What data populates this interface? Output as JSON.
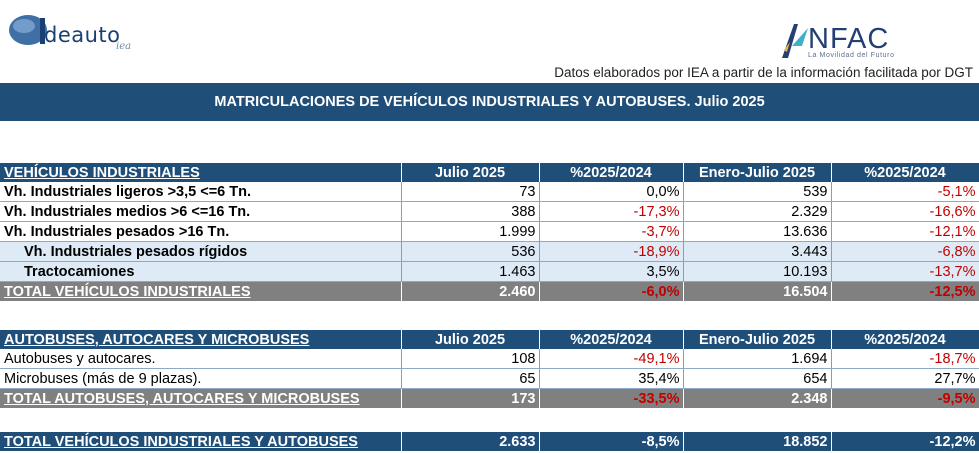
{
  "header": {
    "logo_left_text": "deauto",
    "logo_left_sub": "iea",
    "logo_right_text": "NFAC",
    "logo_right_tag": "La Movilidad del Futuro",
    "source": "Datos elaborados por IEA a partir de la información facilitada por DGT",
    "title": "MATRICULACIONES DE VEHÍCULOS INDUSTRIALES Y AUTOBUSES.  Julio 2025"
  },
  "colors": {
    "banner": "#1f4e79",
    "total_row": "#808080",
    "negative": "#c00000",
    "sub_row": "#deeaf6"
  },
  "industriales": {
    "header": [
      "VEHÍCULOS INDUSTRIALES",
      "Julio 2025",
      "%2025/2024",
      "Enero-Julio 2025",
      "%2025/2024"
    ],
    "rows": [
      [
        "Vh. Industriales ligeros >3,5 <=6 Tn.",
        "73",
        "0,0%",
        "539",
        "-5,1%"
      ],
      [
        "Vh. Industriales medios >6  <=16 Tn.",
        "388",
        "-17,3%",
        "2.329",
        "-16,6%"
      ],
      [
        "Vh. Industriales  pesados >16 Tn.",
        "1.999",
        "-3,7%",
        "13.636",
        "-12,1%"
      ],
      [
        "Vh. Industriales pesados rígidos",
        "536",
        "-18,9%",
        "3.443",
        "-6,8%"
      ],
      [
        "Tractocamiones",
        "1.463",
        "3,5%",
        "10.193",
        "-13,7%"
      ]
    ],
    "total": [
      "TOTAL VEHÍCULOS INDUSTRIALES",
      "2.460",
      "-6,0%",
      "16.504",
      "-12,5%"
    ]
  },
  "autobuses": {
    "header": [
      "AUTOBUSES, AUTOCARES Y MICROBUSES",
      "Julio 2025",
      "%2025/2024",
      "Enero-Julio 2025",
      "%2025/2024"
    ],
    "rows": [
      [
        "Autobuses y autocares.",
        "108",
        "-49,1%",
        "1.694",
        "-18,7%"
      ],
      [
        "Microbuses (más de 9 plazas).",
        "65",
        "35,4%",
        "654",
        "27,7%"
      ]
    ],
    "total": [
      "TOTAL AUTOBUSES, AUTOCARES Y MICROBUSES",
      "173",
      "-33,5%",
      "2.348",
      "-9,5%"
    ]
  },
  "grand_total": [
    "TOTAL VEHÍCULOS INDUSTRIALES Y AUTOBUSES",
    "2.633",
    "-8,5%",
    "18.852",
    "-12,2%"
  ]
}
